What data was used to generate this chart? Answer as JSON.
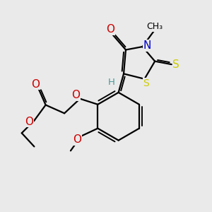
{
  "bg_color": "#eaeaea",
  "atom_colors": {
    "C": "#000000",
    "H": "#4a9a9a",
    "O": "#cc0000",
    "N": "#0000cc",
    "S": "#cccc00",
    "default": "#000000"
  },
  "bond_color": "#000000",
  "bond_width": 1.6,
  "figsize": [
    3.0,
    3.0
  ],
  "dpi": 100,
  "font_size": 10
}
